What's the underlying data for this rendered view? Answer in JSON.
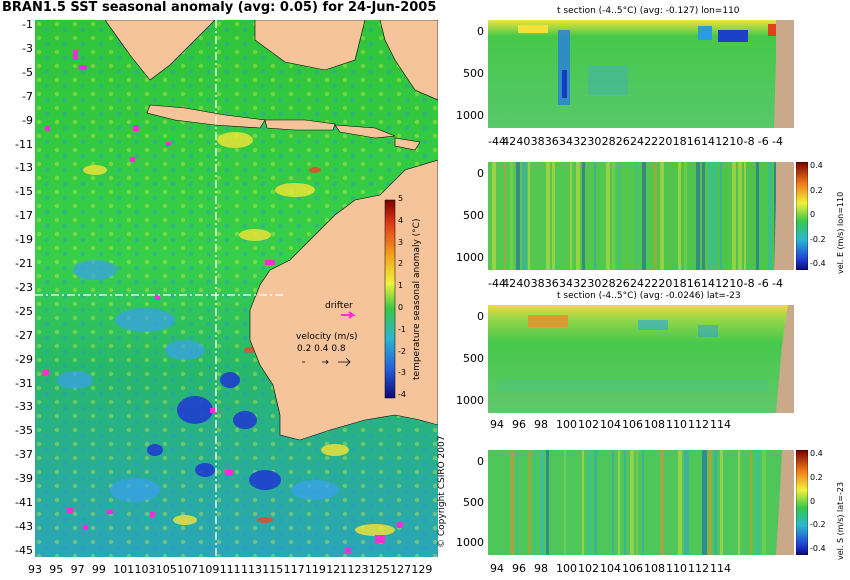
{
  "title": "BRAN1.5 SST seasonal anomaly (avg: 0.05) for 24-Jun-2005",
  "copyright": "© Copyright CSIRO 2007",
  "map": {
    "y_ticks": [
      "-1",
      "-3",
      "-5",
      "-7",
      "-9",
      "-11",
      "-13",
      "-15",
      "-17",
      "-19",
      "-21",
      "-23",
      "-25",
      "-27",
      "-29",
      "-31",
      "-33",
      "-35",
      "-37",
      "-39",
      "-41",
      "-43",
      "-45"
    ],
    "x_ticks": [
      "93",
      "95",
      "97",
      "99",
      "101",
      "103",
      "105",
      "107",
      "109",
      "111",
      "113",
      "115",
      "117",
      "119",
      "121",
      "123",
      "125",
      "127",
      "129"
    ],
    "colorbar_label": "temperature seasonal anomaly (°C)",
    "colorbar_ticks": [
      "5",
      "4",
      "3",
      "2",
      "1",
      "0",
      "-1",
      "-2",
      "-3",
      "-4"
    ],
    "drifter_label": "drifter",
    "velocity_label": "velocity (m/s)",
    "velocity_scale": "0.2 0.4 0.8",
    "section_lon": 110,
    "section_lat": -23
  },
  "panels": {
    "p1": {
      "title": "t section (-4..5°C) (avg: -0.127) lon=110",
      "y_ticks": [
        "0",
        "500",
        "1000"
      ],
      "x_ticks": [
        "-44",
        "42",
        "40",
        "38",
        "36",
        "34",
        "32",
        "30",
        "28",
        "26",
        "24",
        "22",
        "20",
        "18",
        "16",
        "14",
        "12",
        "10",
        "-8",
        "-6",
        "-4"
      ]
    },
    "p2": {
      "title": "",
      "y_ticks": [
        "0",
        "500",
        "1000"
      ],
      "x_ticks": [
        "-44",
        "42",
        "40",
        "38",
        "36",
        "34",
        "32",
        "30",
        "28",
        "26",
        "24",
        "22",
        "20",
        "18",
        "16",
        "14",
        "12",
        "10",
        "-8",
        "-6",
        "-4"
      ],
      "cb_label": "vel. E (m/s) lon=110",
      "cb_ticks": [
        "0.4",
        "0.2",
        "0",
        "-0.2",
        "-0.4"
      ]
    },
    "p3": {
      "title": "t section (-4..5°C) (avg: -0.0246) lat=-23",
      "y_ticks": [
        "0",
        "500",
        "1000"
      ],
      "x_ticks": [
        "94",
        "96",
        "98",
        "100",
        "102",
        "104",
        "106",
        "108",
        "110",
        "112",
        "114"
      ]
    },
    "p4": {
      "title": "",
      "y_ticks": [
        "0",
        "500",
        "1000"
      ],
      "x_ticks": [
        "94",
        "96",
        "98",
        "100",
        "102",
        "104",
        "106",
        "108",
        "110",
        "112",
        "114"
      ],
      "cb_label": "vel. S (m/s) lat=-23",
      "cb_ticks": [
        "0.4",
        "0.2",
        "0",
        "-0.2",
        "-0.4"
      ]
    }
  }
}
